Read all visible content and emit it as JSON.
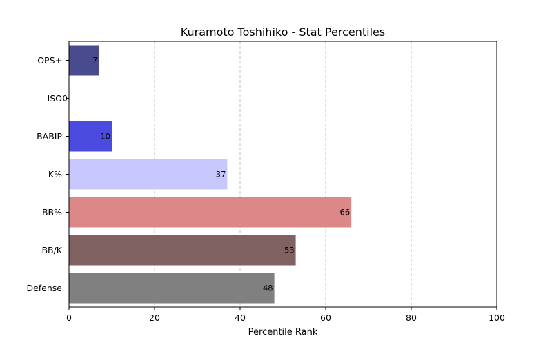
{
  "chart_data": {
    "type": "bar",
    "orientation": "horizontal",
    "title": "Kuramoto Toshihiko - Stat Percentiles",
    "xlabel": "Percentile Rank",
    "ylabel": "",
    "xlim": [
      0,
      100
    ],
    "xticks": [
      "0",
      "20",
      "40",
      "60",
      "80",
      "100"
    ],
    "grid": "x-dashed",
    "categories": [
      "OPS+",
      "ISO",
      "BABIP",
      "K%",
      "BB%",
      "BB/K",
      "Defense"
    ],
    "values": [
      7,
      0,
      10,
      37,
      66,
      53,
      48
    ],
    "colors": [
      "#4a4a8f",
      "#3b3bd6",
      "#4b4be0",
      "#c8c8ff",
      "#dc8888",
      "#806262",
      "#808080"
    ]
  }
}
